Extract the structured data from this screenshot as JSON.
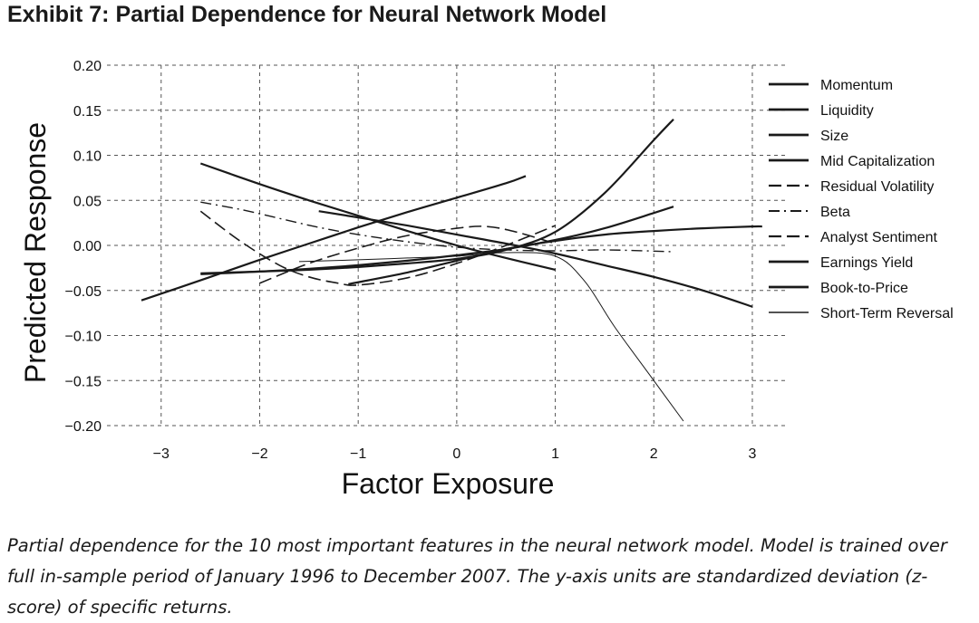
{
  "title": "Exhibit 7: Partial Dependence for Neural Network Model",
  "caption": "Partial dependence for the 10 most important features in the neural network model. Model is trained over full in-sample period of January 1996 to December 2007. The y-axis units are standardized deviation (z-score) of specific returns.",
  "chart_data": {
    "type": "line",
    "title": "",
    "xlabel": "Factor Exposure",
    "ylabel": "Predicted Response",
    "xlim": [
      -3.55,
      3.35
    ],
    "ylim": [
      -0.2,
      0.2
    ],
    "xticks": [
      -3,
      -2,
      -1,
      0,
      1,
      2,
      3
    ],
    "xtick_labels": [
      "−3",
      "−2",
      "−1",
      "0",
      "1",
      "2",
      "3"
    ],
    "yticks": [
      0.2,
      0.15,
      0.1,
      0.05,
      0.0,
      -0.05,
      -0.1,
      -0.15,
      -0.2
    ],
    "ytick_labels": [
      "0.20",
      "0.15",
      "0.10",
      "0.05",
      "0.00",
      "−0.05",
      "−0.10",
      "−0.15",
      "−0.20"
    ],
    "grid": true,
    "legend_position": "right",
    "series": [
      {
        "name": "Momentum",
        "style": "solid",
        "color": "#1a1a1a",
        "x": [
          -2.6,
          -2.0,
          -1.5,
          -1.0,
          -0.5,
          0.0,
          0.5,
          1.0,
          1.5,
          2.0,
          2.2
        ],
        "y": [
          -0.031,
          -0.029,
          -0.027,
          -0.024,
          -0.02,
          -0.015,
          -0.005,
          0.015,
          0.058,
          0.117,
          0.14
        ]
      },
      {
        "name": "Liquidity",
        "style": "solid",
        "color": "#1a1a1a",
        "x": [
          -2.6,
          -2.0,
          -1.5,
          -1.0,
          -0.5,
          0.0,
          0.5,
          1.0,
          1.5,
          2.0,
          2.2
        ],
        "y": [
          -0.032,
          -0.029,
          -0.026,
          -0.022,
          -0.017,
          -0.011,
          -0.004,
          0.006,
          0.019,
          0.036,
          0.043
        ]
      },
      {
        "name": "Size",
        "style": "solid",
        "color": "#1a1a1a",
        "x": [
          -3.2,
          -2.5,
          -2.0,
          -1.5,
          -1.0,
          -0.5,
          0.0,
          0.5,
          0.7
        ],
        "y": [
          -0.061,
          -0.035,
          -0.016,
          0.002,
          0.02,
          0.037,
          0.053,
          0.069,
          0.077
        ]
      },
      {
        "name": "Mid Capitalization",
        "style": "solid",
        "color": "#1a1a1a",
        "x": [
          -2.6,
          -2.0,
          -1.5,
          -1.0,
          -0.5,
          0.0,
          0.5,
          1.0
        ],
        "y": [
          0.091,
          0.068,
          0.05,
          0.033,
          0.016,
          0.0,
          -0.014,
          -0.027
        ]
      },
      {
        "name": "Residual Volatility",
        "style": "dashed",
        "color": "#1a1a1a",
        "x": [
          -2.6,
          -2.2,
          -1.8,
          -1.5,
          -1.2,
          -1.0,
          -0.5,
          0.0,
          0.5,
          1.0
        ],
        "y": [
          0.038,
          0.005,
          -0.022,
          -0.035,
          -0.042,
          -0.044,
          -0.036,
          -0.02,
          0.0,
          0.022
        ]
      },
      {
        "name": "Beta",
        "style": "dashdot",
        "color": "#1a1a1a",
        "x": [
          -2.6,
          -2.2,
          -1.8,
          -1.4,
          -1.0,
          -0.5,
          0.0,
          0.5,
          1.0,
          1.5,
          2.2
        ],
        "y": [
          0.048,
          0.04,
          0.03,
          0.02,
          0.012,
          0.004,
          -0.002,
          -0.005,
          -0.006,
          -0.005,
          -0.007
        ]
      },
      {
        "name": "Analyst Sentiment",
        "style": "dashed",
        "color": "#1a1a1a",
        "x": [
          -2.0,
          -1.5,
          -1.0,
          -0.5,
          0.0,
          0.3,
          0.6,
          1.0
        ],
        "y": [
          -0.042,
          -0.02,
          -0.003,
          0.011,
          0.019,
          0.021,
          0.015,
          0.002
        ]
      },
      {
        "name": "Earnings Yield",
        "style": "solid",
        "color": "#1a1a1a",
        "x": [
          -1.1,
          -0.5,
          0.0,
          0.5,
          1.0,
          1.5,
          2.0,
          2.5,
          3.0,
          3.1
        ],
        "y": [
          -0.043,
          -0.03,
          -0.017,
          -0.004,
          0.005,
          0.012,
          0.016,
          0.019,
          0.021,
          0.021
        ]
      },
      {
        "name": "Book-to-Price",
        "style": "solid",
        "color": "#1a1a1a",
        "x": [
          -1.4,
          -1.0,
          -0.5,
          0.0,
          0.5,
          1.0,
          1.5,
          2.0,
          2.5,
          3.0
        ],
        "y": [
          0.038,
          0.031,
          0.022,
          0.012,
          0.002,
          -0.009,
          -0.022,
          -0.035,
          -0.05,
          -0.068
        ]
      },
      {
        "name": "Short-Term Reversal",
        "style": "thin",
        "color": "#1a1a1a",
        "x": [
          -1.6,
          -1.0,
          -0.5,
          0.0,
          0.5,
          1.0,
          1.3,
          1.6,
          2.0,
          2.3
        ],
        "y": [
          -0.018,
          -0.016,
          -0.014,
          -0.012,
          -0.008,
          -0.012,
          -0.04,
          -0.09,
          -0.15,
          -0.195
        ]
      }
    ]
  }
}
